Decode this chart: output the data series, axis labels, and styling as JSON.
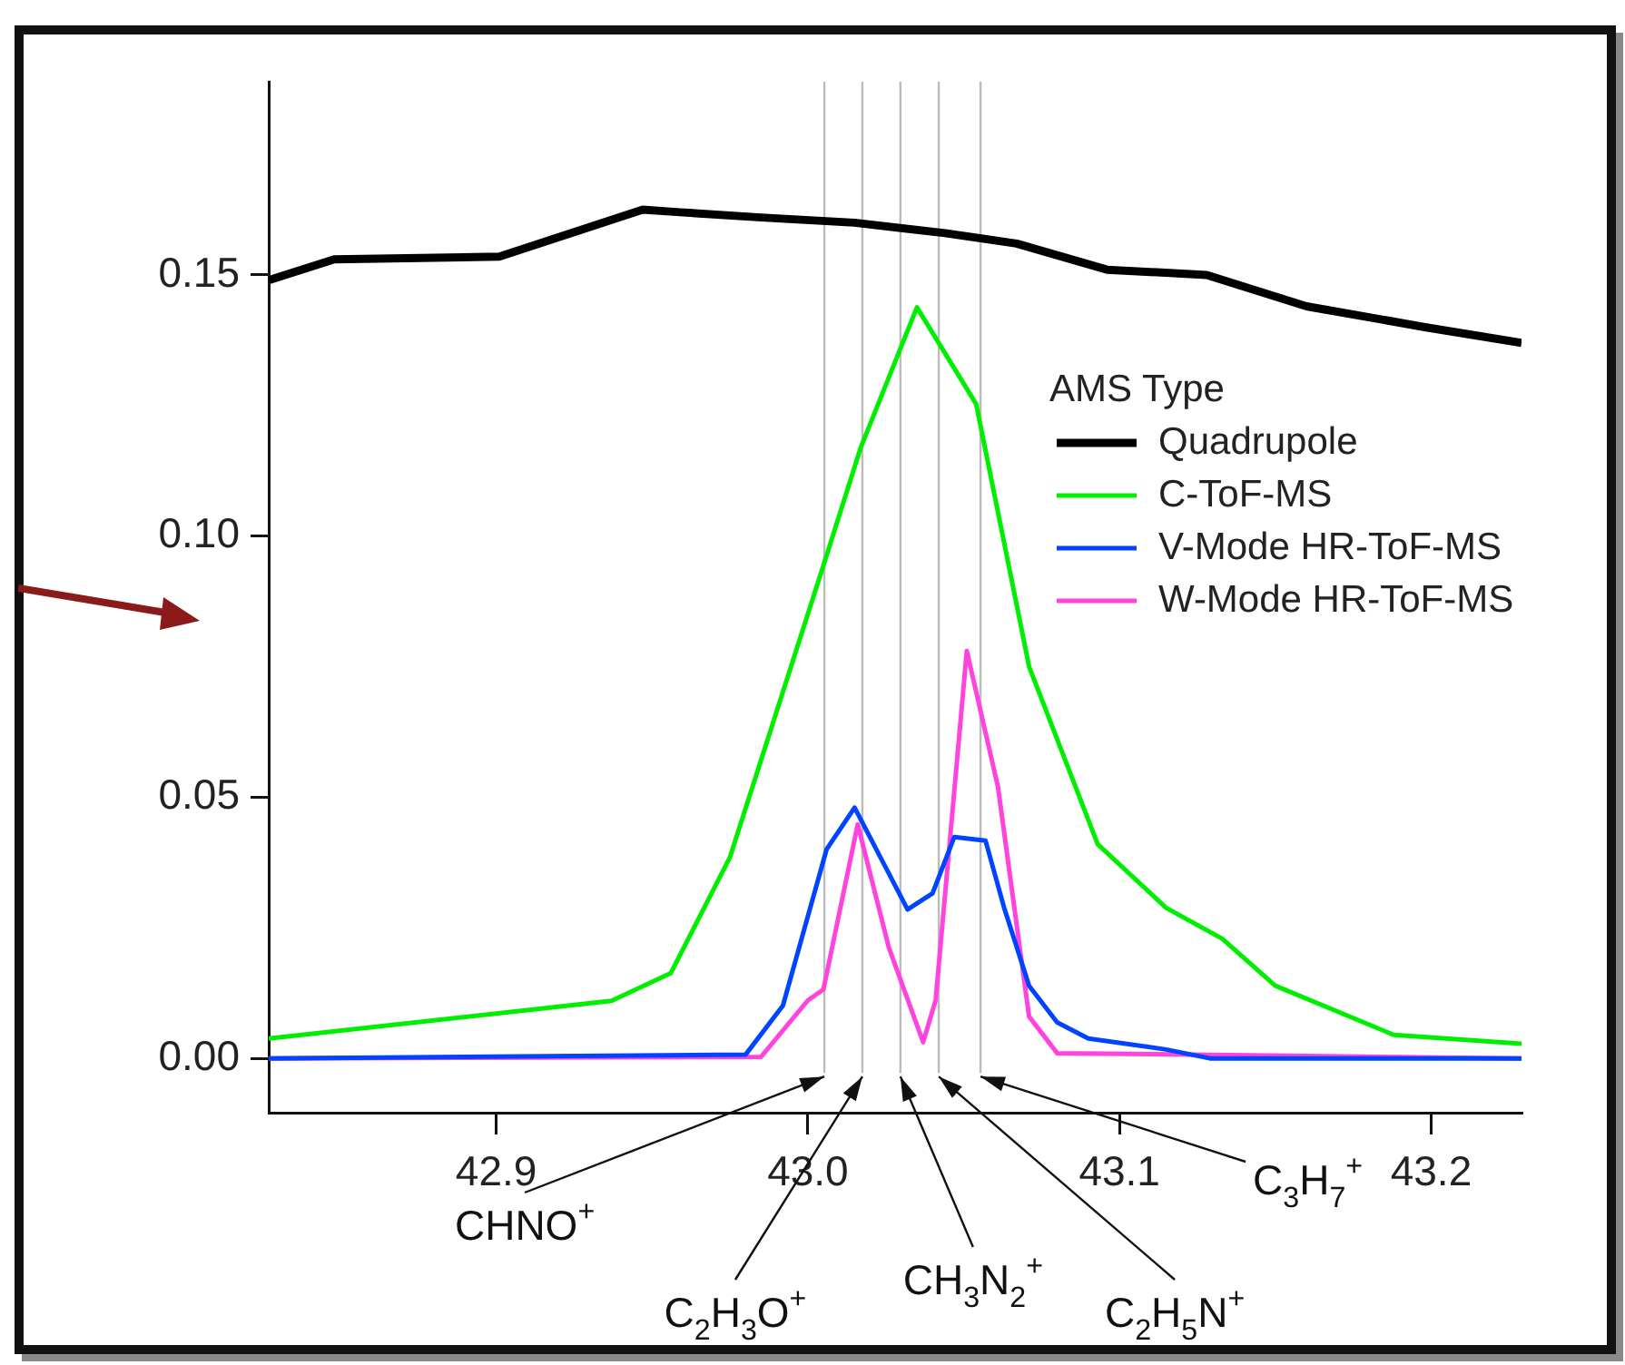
{
  "chart_data": {
    "type": "line",
    "legend_title": "AMS Type",
    "legend": "right",
    "xlim": [
      42.827,
      43.229
    ],
    "ylim": [
      -0.0104,
      0.187
    ],
    "xticks": [
      42.9,
      {
        "value": 43.0,
        "label": "43.0"
      },
      43.1,
      43.2
    ],
    "yticks": [
      {
        "value": 0,
        "label": "0.00"
      },
      {
        "value": 0.05,
        "label": "0.05"
      },
      {
        "value": 0.1,
        "label": "0.10"
      },
      {
        "value": 0.15,
        "label": "0.15"
      }
    ],
    "series": [
      {
        "name": "Quadrupole",
        "color": "#000000",
        "x": [
          42.827,
          42.848,
          42.901,
          42.947,
          42.959,
          42.985,
          43.015,
          43.044,
          43.067,
          43.096,
          43.128,
          43.16,
          43.198,
          43.229
        ],
        "values": [
          0.149,
          0.153,
          0.1535,
          0.1625,
          0.162,
          0.161,
          0.16,
          0.158,
          0.156,
          0.151,
          0.15,
          0.144,
          0.14,
          0.137
        ]
      },
      {
        "name": "C-ToF-MS",
        "color": "#00ee00",
        "x": [
          42.827,
          42.937,
          42.956,
          42.975,
          43.005,
          43.017,
          43.035,
          43.054,
          43.071,
          43.093,
          43.115,
          43.133,
          43.15,
          43.188,
          43.229
        ],
        "values": [
          0.0038,
          0.011,
          0.0163,
          0.0385,
          0.0944,
          0.117,
          0.1438,
          0.1253,
          0.075,
          0.041,
          0.0288,
          0.0229,
          0.0139,
          0.0045,
          0.0028
        ]
      },
      {
        "name": "V-Mode HR-ToF-MS",
        "color": "#0044ff",
        "x": [
          42.827,
          42.98,
          42.992,
          43.006,
          43.015,
          43.032,
          43.04,
          43.047,
          43.057,
          43.063,
          43.071,
          43.08,
          43.09,
          43.115,
          43.129,
          43.229
        ],
        "values": [
          0,
          0.0007,
          0.0101,
          0.04,
          0.048,
          0.0285,
          0.0316,
          0.0424,
          0.0417,
          0.0288,
          0.0139,
          0.0069,
          0.0038,
          0.0017,
          0,
          0
        ]
      },
      {
        "name": "W-Mode HR-ToF-MS",
        "color": "#ff44dd",
        "x": [
          42.827,
          42.985,
          43.0,
          43.005,
          43.016,
          43.026,
          43.037,
          43.041,
          43.051,
          43.061,
          43.071,
          43.08,
          43.229
        ],
        "values": [
          0,
          0.0003,
          0.0111,
          0.0132,
          0.0448,
          0.0212,
          0.0031,
          0.0111,
          0.078,
          0.052,
          0.008,
          0.001,
          0
        ]
      }
    ],
    "ref_lines": [
      {
        "axis": "x",
        "value": 43.0053,
        "label": "CHNO$^{+}$",
        "color": "#bbbbbb"
      },
      {
        "axis": "x",
        "value": 43.0175,
        "label": "C$_{2}$H$_{3}$O$^{+}$",
        "color": "#bbbbbb"
      },
      {
        "axis": "x",
        "value": 43.0297,
        "label": "CH$_{3}$N$_{2}$$^{+}$",
        "color": "#bbbbbb"
      },
      {
        "axis": "x",
        "value": 43.042,
        "label": "C$_{2}$H$_{5}$N$^{+}$",
        "color": "#bbbbbb"
      },
      {
        "axis": "x",
        "value": 43.0554,
        "label": "C$_{3}$H$_{7}$$^{+}$",
        "color": "#bbbbbb"
      }
    ]
  }
}
